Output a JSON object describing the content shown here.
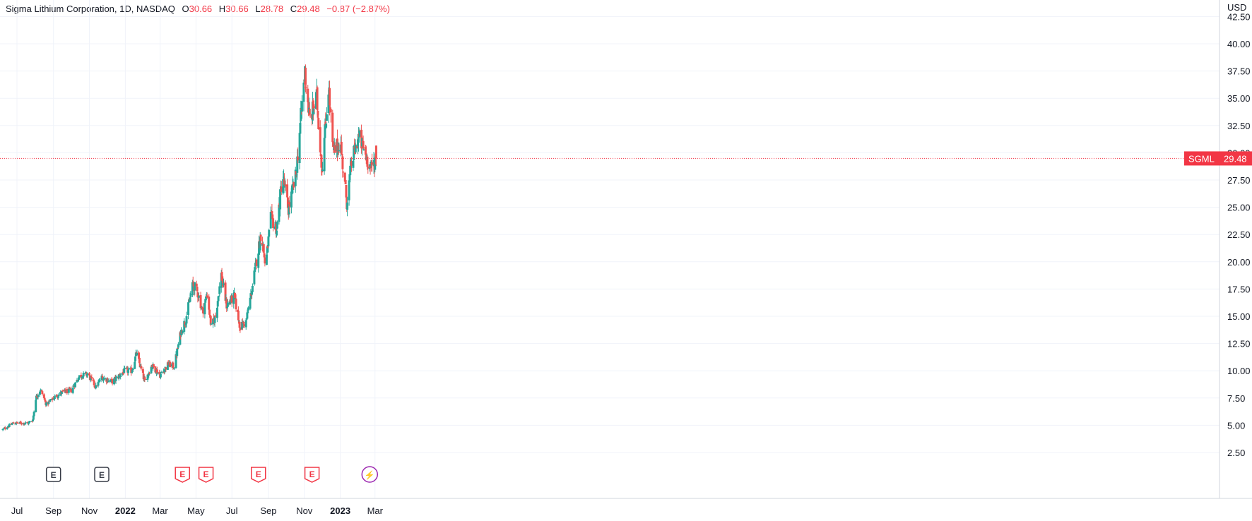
{
  "legend": {
    "symbol_line": "Sigma Lithium Corporation, 1D, NASDAQ",
    "open_key": "O",
    "open": "30.66",
    "high_key": "H",
    "high": "30.66",
    "low_key": "L",
    "low": "28.78",
    "close_key": "C",
    "close": "29.48",
    "change": "−0.87 (−2.87%)"
  },
  "price_axis": {
    "currency": "USD",
    "ticks": [
      "42.50",
      "40.00",
      "37.50",
      "35.00",
      "32.50",
      "30.00",
      "27.50",
      "25.00",
      "22.50",
      "20.00",
      "17.50",
      "15.00",
      "12.50",
      "10.00",
      "7.50",
      "5.00",
      "2.50"
    ]
  },
  "last_price_tag": {
    "symbol": "SGML",
    "value": "29.48"
  },
  "time_axis": {
    "labels": [
      {
        "text": "Jul",
        "bold": false
      },
      {
        "text": "Sep",
        "bold": false
      },
      {
        "text": "Nov",
        "bold": false
      },
      {
        "text": "2022",
        "bold": true
      },
      {
        "text": "Mar",
        "bold": false
      },
      {
        "text": "May",
        "bold": false
      },
      {
        "text": "Jul",
        "bold": false
      },
      {
        "text": "Sep",
        "bold": false
      },
      {
        "text": "Nov",
        "bold": false
      },
      {
        "text": "2023",
        "bold": true
      },
      {
        "text": "Mar",
        "bold": false
      }
    ]
  },
  "colors": {
    "up": "#26a69a",
    "down": "#ef5350",
    "grid": "#f0f3fa",
    "axis_text": "#131722",
    "event_past": "#363a45",
    "event_future": "#f23645",
    "flash": "#9c27b0"
  },
  "events": [
    {
      "label": "E",
      "date": "2021-09-01",
      "kind": "past"
    },
    {
      "label": "E",
      "date": "2021-11-22",
      "kind": "past"
    },
    {
      "label": "E",
      "date": "2022-04-08",
      "kind": "red"
    },
    {
      "label": "E",
      "date": "2022-05-18",
      "kind": "red"
    },
    {
      "label": "E",
      "date": "2022-08-15",
      "kind": "red"
    },
    {
      "label": "E",
      "date": "2022-11-14",
      "kind": "red"
    },
    {
      "label": "⚡",
      "date": "2023-02-20",
      "kind": "flash"
    }
  ],
  "chart_data": {
    "type": "candlestick",
    "title": "Sigma Lithium Corporation, 1D, NASDAQ",
    "x_range": [
      "2021-06-07",
      "2023-03-10"
    ],
    "ylim": [
      0,
      43.5
    ],
    "y_scale": "linear",
    "grid": true,
    "keypoints": [
      [
        "2021-06-07",
        4.6
      ],
      [
        "2021-06-25",
        5.2
      ],
      [
        "2021-07-20",
        5.2
      ],
      [
        "2021-07-28",
        5.5
      ],
      [
        "2021-08-02",
        7.5
      ],
      [
        "2021-08-10",
        8.3
      ],
      [
        "2021-08-20",
        6.9
      ],
      [
        "2021-09-01",
        7.5
      ],
      [
        "2021-09-15",
        8.0
      ],
      [
        "2021-10-01",
        8.2
      ],
      [
        "2021-10-15",
        9.5
      ],
      [
        "2021-10-29",
        9.7
      ],
      [
        "2021-11-12",
        8.5
      ],
      [
        "2021-11-22",
        9.4
      ],
      [
        "2021-12-10",
        9.0
      ],
      [
        "2021-12-31",
        10.0
      ],
      [
        "2022-01-12",
        10.0
      ],
      [
        "2022-01-20",
        11.6
      ],
      [
        "2022-02-03",
        9.0
      ],
      [
        "2022-02-15",
        10.5
      ],
      [
        "2022-03-01",
        9.6
      ],
      [
        "2022-03-15",
        10.6
      ],
      [
        "2022-03-25",
        10.4
      ],
      [
        "2022-04-05",
        13.5
      ],
      [
        "2022-04-14",
        14.8
      ],
      [
        "2022-04-26",
        18.0
      ],
      [
        "2022-05-05",
        17.0
      ],
      [
        "2022-05-12",
        15.5
      ],
      [
        "2022-05-20",
        17.0
      ],
      [
        "2022-05-27",
        14.0
      ],
      [
        "2022-06-03",
        15.0
      ],
      [
        "2022-06-13",
        18.8
      ],
      [
        "2022-06-22",
        16.0
      ],
      [
        "2022-07-05",
        16.8
      ],
      [
        "2022-07-15",
        14.0
      ],
      [
        "2022-07-25",
        14.5
      ],
      [
        "2022-08-05",
        17.8
      ],
      [
        "2022-08-20",
        22.8
      ],
      [
        "2022-08-27",
        19.5
      ],
      [
        "2022-09-05",
        24.0
      ],
      [
        "2022-09-15",
        23.0
      ],
      [
        "2022-09-25",
        28.0
      ],
      [
        "2022-10-05",
        24.8
      ],
      [
        "2022-10-18",
        28.0
      ],
      [
        "2022-10-28",
        34.5
      ],
      [
        "2022-11-02",
        37.5
      ],
      [
        "2022-11-10",
        33.0
      ],
      [
        "2022-11-22",
        35.0
      ],
      [
        "2022-12-01",
        28.5
      ],
      [
        "2022-12-12",
        36.0
      ],
      [
        "2022-12-20",
        30.0
      ],
      [
        "2023-01-01",
        31.0
      ],
      [
        "2023-01-12",
        25.5
      ],
      [
        "2023-01-20",
        29.0
      ],
      [
        "2023-02-01",
        31.5
      ],
      [
        "2023-02-12",
        30.0
      ],
      [
        "2023-02-22",
        28.5
      ],
      [
        "2023-03-02",
        29.5
      ]
    ],
    "last": {
      "date": "2023-03-03",
      "open": 30.66,
      "high": 30.66,
      "low": 28.78,
      "close": 29.48
    }
  }
}
